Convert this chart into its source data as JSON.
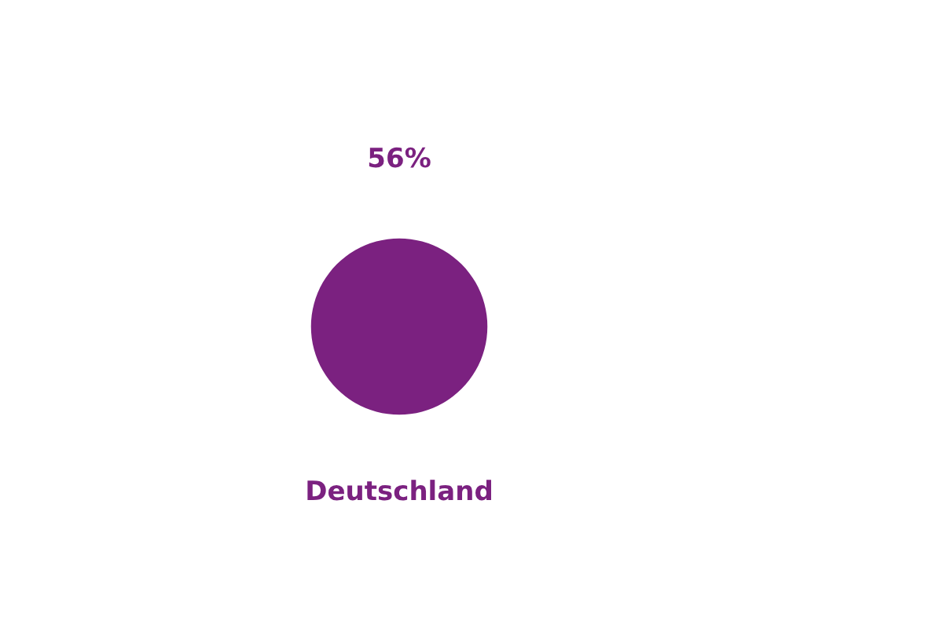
{
  "chart_data": {
    "type": "other",
    "categories": [
      "Deutschland"
    ],
    "values": [
      56
    ],
    "value_labels": [
      "56%"
    ],
    "color": "#7b2180"
  }
}
